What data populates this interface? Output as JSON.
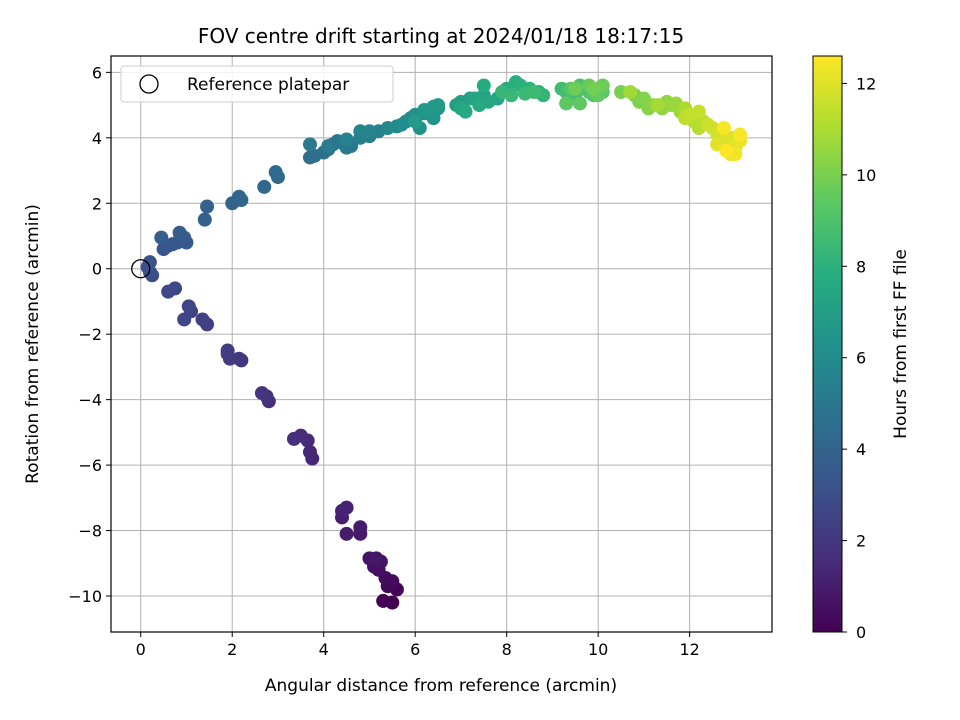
{
  "chart_data": {
    "type": "scatter",
    "title": "FOV centre drift starting at 2024/01/18 18:17:15",
    "xlabel": "Angular distance from reference (arcmin)",
    "ylabel": "Rotation from reference (arcmin)",
    "xlim": [
      -0.65,
      13.8
    ],
    "ylim": [
      -11.1,
      6.5
    ],
    "xticks": [
      0,
      2,
      4,
      6,
      8,
      10,
      12
    ],
    "yticks": [
      -10,
      -8,
      -6,
      -4,
      -2,
      0,
      2,
      4,
      6
    ],
    "grid": true,
    "legend": {
      "placement": "upper-left",
      "entries": [
        "Reference platepar"
      ]
    },
    "reference_point": {
      "x": 0,
      "y": 0
    },
    "colorbar": {
      "label": "Hours from first FF file",
      "colormap": "viridis",
      "range": [
        0,
        12.6
      ],
      "ticks": [
        0,
        2,
        4,
        6,
        8,
        10,
        12
      ]
    },
    "series": [
      {
        "points": [
          [
            5.5,
            -10.2
          ],
          [
            5.3,
            -10.15
          ],
          [
            5.6,
            -9.8
          ],
          [
            5.4,
            -9.7
          ],
          [
            5.5,
            -9.55
          ],
          [
            5.35,
            -9.45
          ],
          [
            5.2,
            -9.2
          ],
          [
            5.1,
            -9.1
          ],
          [
            5.25,
            -8.95
          ],
          [
            5.0,
            -8.85
          ],
          [
            5.15,
            -8.85
          ],
          [
            4.8,
            -8.1
          ],
          [
            4.8,
            -7.9
          ],
          [
            4.5,
            -8.1
          ],
          [
            4.4,
            -7.6
          ],
          [
            4.5,
            -7.3
          ],
          [
            4.4,
            -7.4
          ],
          [
            3.75,
            -5.8
          ],
          [
            3.7,
            -5.6
          ],
          [
            3.65,
            -5.25
          ],
          [
            3.5,
            -5.1
          ],
          [
            3.35,
            -5.2
          ],
          [
            2.8,
            -4.05
          ],
          [
            2.75,
            -3.9
          ],
          [
            2.65,
            -3.8
          ],
          [
            2.2,
            -2.8
          ],
          [
            2.15,
            -2.75
          ],
          [
            1.95,
            -2.75
          ],
          [
            1.9,
            -2.6
          ],
          [
            1.9,
            -2.5
          ],
          [
            1.45,
            -1.7
          ],
          [
            1.35,
            -1.55
          ],
          [
            1.1,
            -1.3
          ],
          [
            1.05,
            -1.15
          ],
          [
            0.95,
            -1.55
          ],
          [
            0.75,
            -0.6
          ],
          [
            0.6,
            -0.7
          ],
          [
            0.25,
            -0.2
          ],
          [
            0.2,
            -0.1
          ],
          [
            0.15,
            0.05
          ],
          [
            0.2,
            0.2
          ],
          [
            0.5,
            0.6
          ],
          [
            0.6,
            0.7
          ],
          [
            0.7,
            0.75
          ],
          [
            0.8,
            0.8
          ],
          [
            1.0,
            0.8
          ],
          [
            0.95,
            0.95
          ],
          [
            0.85,
            1.1
          ],
          [
            0.45,
            0.95
          ],
          [
            1.4,
            1.5
          ],
          [
            1.45,
            1.9
          ],
          [
            2.0,
            2.0
          ],
          [
            2.15,
            2.2
          ],
          [
            2.2,
            2.1
          ],
          [
            2.7,
            2.5
          ],
          [
            3.0,
            2.8
          ],
          [
            2.95,
            2.95
          ],
          [
            3.7,
            3.4
          ],
          [
            3.8,
            3.45
          ],
          [
            4.0,
            3.55
          ],
          [
            4.1,
            3.65
          ],
          [
            4.2,
            3.8
          ],
          [
            4.3,
            3.9
          ],
          [
            4.4,
            3.85
          ],
          [
            4.5,
            3.7
          ],
          [
            4.6,
            3.75
          ],
          [
            3.7,
            3.8
          ],
          [
            4.1,
            3.75
          ],
          [
            4.8,
            4.0
          ],
          [
            5.0,
            4.05
          ],
          [
            5.2,
            4.2
          ],
          [
            4.5,
            3.95
          ],
          [
            4.8,
            4.2
          ],
          [
            5.0,
            4.2
          ],
          [
            5.4,
            4.3
          ],
          [
            5.6,
            4.35
          ],
          [
            5.8,
            4.5
          ],
          [
            5.9,
            4.6
          ],
          [
            5.7,
            4.4
          ],
          [
            6.0,
            4.7
          ],
          [
            6.2,
            4.75
          ],
          [
            6.3,
            4.8
          ],
          [
            6.1,
            4.3
          ],
          [
            6.4,
            4.6
          ],
          [
            6.5,
            4.9
          ],
          [
            6.2,
            4.85
          ],
          [
            6.4,
            4.95
          ],
          [
            6.5,
            5.0
          ],
          [
            6.0,
            4.5
          ],
          [
            6.9,
            5.0
          ],
          [
            7.0,
            5.1
          ],
          [
            7.2,
            5.2
          ],
          [
            7.5,
            5.3
          ],
          [
            7.8,
            5.2
          ],
          [
            7.3,
            5.2
          ],
          [
            7.6,
            5.1
          ],
          [
            7.0,
            4.9
          ],
          [
            7.1,
            4.8
          ],
          [
            7.4,
            5.0
          ],
          [
            7.5,
            5.6
          ],
          [
            8.0,
            5.5
          ],
          [
            8.2,
            5.7
          ],
          [
            8.3,
            5.6
          ],
          [
            8.5,
            5.5
          ],
          [
            8.7,
            5.4
          ],
          [
            8.8,
            5.3
          ],
          [
            7.9,
            5.4
          ],
          [
            8.1,
            5.3
          ],
          [
            8.4,
            5.35
          ],
          [
            8.6,
            5.4
          ],
          [
            9.2,
            5.5
          ],
          [
            9.3,
            5.4
          ],
          [
            9.5,
            5.3
          ],
          [
            9.6,
            5.6
          ],
          [
            9.7,
            5.5
          ],
          [
            9.8,
            5.4
          ],
          [
            10.0,
            5.5
          ],
          [
            9.4,
            5.5
          ],
          [
            9.9,
            5.3
          ],
          [
            10.1,
            5.4
          ],
          [
            9.3,
            5.05
          ],
          [
            9.6,
            5.05
          ],
          [
            10.0,
            5.3
          ],
          [
            9.8,
            5.6
          ],
          [
            10.1,
            5.6
          ],
          [
            9.5,
            5.5
          ],
          [
            9.9,
            5.5
          ],
          [
            10.5,
            5.4
          ],
          [
            10.8,
            5.3
          ],
          [
            10.9,
            5.1
          ],
          [
            11.0,
            5.2
          ],
          [
            11.1,
            4.9
          ],
          [
            11.2,
            5.0
          ],
          [
            11.4,
            4.9
          ],
          [
            11.5,
            5.1
          ],
          [
            11.6,
            5.0
          ],
          [
            11.7,
            5.05
          ],
          [
            11.8,
            4.8
          ],
          [
            10.7,
            5.4
          ],
          [
            11.3,
            5.0
          ],
          [
            11.9,
            4.9
          ],
          [
            12.0,
            4.6
          ],
          [
            12.1,
            4.5
          ],
          [
            12.2,
            4.3
          ],
          [
            12.3,
            4.5
          ],
          [
            11.9,
            4.6
          ],
          [
            12.0,
            4.7
          ],
          [
            12.2,
            4.8
          ],
          [
            12.4,
            4.4
          ],
          [
            12.5,
            4.3
          ],
          [
            12.6,
            4.1
          ],
          [
            12.7,
            4.2
          ],
          [
            12.8,
            3.9
          ],
          [
            12.9,
            4.0
          ],
          [
            12.6,
            3.8
          ],
          [
            13.0,
            3.7
          ],
          [
            13.1,
            3.9
          ],
          [
            12.9,
            3.5
          ],
          [
            13.0,
            3.5
          ],
          [
            13.1,
            4.1
          ],
          [
            12.75,
            4.3
          ],
          [
            12.8,
            3.6
          ]
        ]
      }
    ]
  }
}
